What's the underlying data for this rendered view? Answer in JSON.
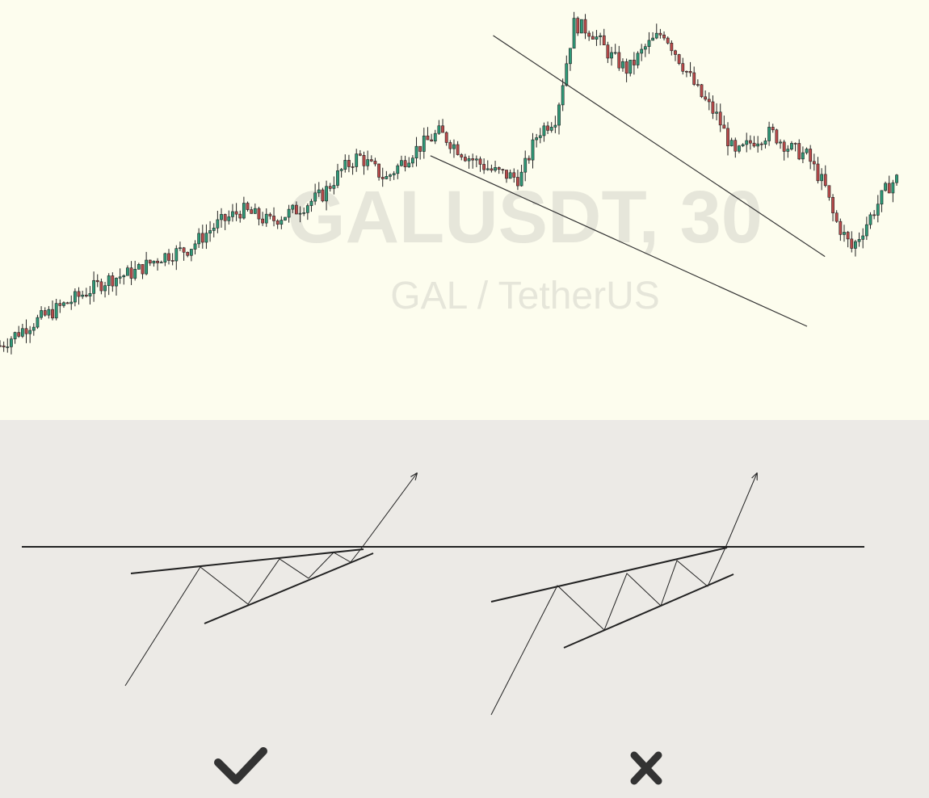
{
  "chart": {
    "watermark_symbol": "GALUSDT, 30",
    "watermark_name": "GAL / TetherUS",
    "background": "#fdfdee",
    "watermark_color": "#e6e6da",
    "bull_color": "#2e9a78",
    "bear_color": "#b94a4a",
    "wick_color": "#222222"
  },
  "diagram": {
    "background": "#eceae6",
    "line_color": "#222222",
    "left_verdict_icon": "check-mark-icon",
    "right_verdict_icon": "cross-mark-icon"
  },
  "chart_data": {
    "type": "candlestick",
    "title": "",
    "xlabel": "",
    "ylabel": "",
    "ylim": [
      0,
      100
    ],
    "note": "values are estimated relative price levels on a 0-100 scale; no axes or ticks are printed",
    "points": [
      [
        0,
        15
      ],
      [
        3,
        20
      ],
      [
        6,
        24
      ],
      [
        9,
        28
      ],
      [
        12,
        32
      ],
      [
        15,
        34
      ],
      [
        18,
        38
      ],
      [
        21,
        40
      ],
      [
        24,
        46
      ],
      [
        27,
        50
      ],
      [
        30,
        47
      ],
      [
        33,
        50
      ],
      [
        36,
        54
      ],
      [
        38,
        60
      ],
      [
        40,
        64
      ],
      [
        43,
        58
      ],
      [
        46,
        65
      ],
      [
        49,
        70
      ],
      [
        52,
        64
      ],
      [
        55,
        60
      ],
      [
        58,
        58
      ],
      [
        60,
        70
      ],
      [
        62,
        74
      ],
      [
        64,
        98
      ],
      [
        66,
        96
      ],
      [
        68,
        90
      ],
      [
        70,
        86
      ],
      [
        72,
        92
      ],
      [
        74,
        96
      ],
      [
        76,
        88
      ],
      [
        78,
        80
      ],
      [
        80,
        74
      ],
      [
        82,
        64
      ],
      [
        84,
        68
      ],
      [
        86,
        70
      ],
      [
        88,
        66
      ],
      [
        90,
        64
      ],
      [
        91,
        60
      ],
      [
        92,
        56
      ],
      [
        93,
        48
      ],
      [
        94,
        44
      ],
      [
        95,
        40
      ],
      [
        96,
        44
      ],
      [
        97,
        48
      ],
      [
        98,
        52
      ],
      [
        99,
        56
      ],
      [
        100,
        58
      ]
    ],
    "trendlines": [
      {
        "name": "",
        "from": [
          55,
          95
        ],
        "to": [
          92,
          38
        ]
      },
      {
        "name": "",
        "from": [
          48,
          64
        ],
        "to": [
          90,
          20
        ]
      }
    ]
  }
}
